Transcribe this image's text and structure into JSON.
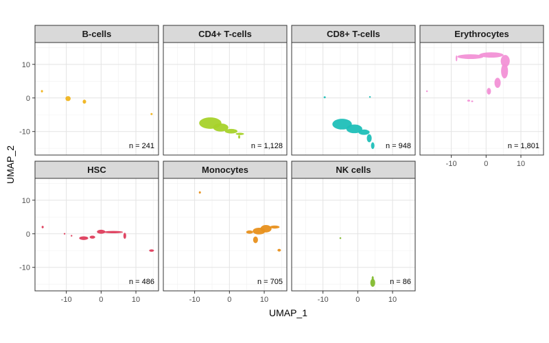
{
  "chart_data": {
    "type": "scatter",
    "title": "",
    "xlabel": "UMAP_1",
    "ylabel": "UMAP_2",
    "xlim": [
      -19,
      16.5
    ],
    "ylim": [
      -17,
      16.5
    ],
    "x_ticks": [
      -10,
      0,
      10
    ],
    "y_ticks": [
      10,
      0,
      -10
    ],
    "grid": true,
    "legend": "none",
    "panels": [
      {
        "name": "B-cells",
        "n_label": "n = 241",
        "color": "#f0b41d",
        "clusters": [
          {
            "x": -17,
            "y": 2,
            "rx": 0.3,
            "ry": 0.35
          },
          {
            "x": -9.5,
            "y": -0.2,
            "rx": 0.75,
            "ry": 0.75
          },
          {
            "x": -4.8,
            "y": -1.1,
            "rx": 0.5,
            "ry": 0.6
          },
          {
            "x": 14.5,
            "y": -4.8,
            "rx": 0.3,
            "ry": 0.3
          }
        ]
      },
      {
        "name": "CD4+ T-cells",
        "n_label": "n = 1,128",
        "color": "#a6d22a",
        "clusters": [
          {
            "x": -5.5,
            "y": -7.5,
            "rx": 3.2,
            "ry": 1.7
          },
          {
            "x": -2.5,
            "y": -8.8,
            "rx": 2.2,
            "ry": 1.2
          },
          {
            "x": 0.5,
            "y": -9.9,
            "rx": 1.8,
            "ry": 0.7
          },
          {
            "x": 3.0,
            "y": -10.7,
            "rx": 1.2,
            "ry": 0.35
          },
          {
            "x": 2.8,
            "y": -11.6,
            "rx": 0.3,
            "ry": 0.5
          }
        ]
      },
      {
        "name": "CD8+ T-cells",
        "n_label": "n = 948",
        "color": "#1fbfb8",
        "clusters": [
          {
            "x": -9.5,
            "y": 0.2,
            "rx": 0.3,
            "ry": 0.3
          },
          {
            "x": 3.5,
            "y": 0.3,
            "rx": 0.25,
            "ry": 0.25
          },
          {
            "x": -4.5,
            "y": -7.8,
            "rx": 2.8,
            "ry": 1.6
          },
          {
            "x": -1.0,
            "y": -9.2,
            "rx": 2.3,
            "ry": 1.3
          },
          {
            "x": 1.8,
            "y": -10.2,
            "rx": 1.6,
            "ry": 0.8
          },
          {
            "x": 3.3,
            "y": -12.0,
            "rx": 0.7,
            "ry": 1.2
          },
          {
            "x": 4.3,
            "y": -14.2,
            "rx": 0.5,
            "ry": 1.0
          }
        ]
      },
      {
        "name": "Erythrocytes",
        "n_label": "n = 1,801",
        "color": "#f291d6",
        "clusters": [
          {
            "x": -17,
            "y": 2,
            "rx": 0.25,
            "ry": 0.25
          },
          {
            "x": -5,
            "y": -0.8,
            "rx": 0.4,
            "ry": 0.3
          },
          {
            "x": -4,
            "y": -1.0,
            "rx": 0.3,
            "ry": 0.25
          },
          {
            "x": -8.5,
            "y": 11.8,
            "rx": 0.2,
            "ry": 0.9
          },
          {
            "x": -4.5,
            "y": 12.3,
            "rx": 3.8,
            "ry": 0.7
          },
          {
            "x": 1.5,
            "y": 12.8,
            "rx": 3.5,
            "ry": 0.8
          },
          {
            "x": 5.5,
            "y": 11.0,
            "rx": 1.3,
            "ry": 1.8
          },
          {
            "x": 5.3,
            "y": 8.0,
            "rx": 1.0,
            "ry": 2.2
          },
          {
            "x": 3.3,
            "y": 4.5,
            "rx": 0.9,
            "ry": 1.5
          },
          {
            "x": 0.8,
            "y": 2.0,
            "rx": 0.6,
            "ry": 1.0
          }
        ]
      },
      {
        "name": "HSC",
        "n_label": "n = 486",
        "color": "#de3d5c",
        "clusters": [
          {
            "x": -16.8,
            "y": 2,
            "rx": 0.3,
            "ry": 0.35
          },
          {
            "x": -10.5,
            "y": 0,
            "rx": 0.2,
            "ry": 0.2
          },
          {
            "x": -8.5,
            "y": -0.6,
            "rx": 0.2,
            "ry": 0.2
          },
          {
            "x": -5,
            "y": -1.3,
            "rx": 1.3,
            "ry": 0.55
          },
          {
            "x": -2.5,
            "y": -1.0,
            "rx": 0.8,
            "ry": 0.45
          },
          {
            "x": 0,
            "y": 0.6,
            "rx": 1.2,
            "ry": 0.6
          },
          {
            "x": 3.5,
            "y": 0.5,
            "rx": 2.8,
            "ry": 0.35
          },
          {
            "x": 6.8,
            "y": -0.6,
            "rx": 0.4,
            "ry": 0.9
          },
          {
            "x": 14.5,
            "y": -5.0,
            "rx": 0.7,
            "ry": 0.35
          }
        ]
      },
      {
        "name": "Monocytes",
        "n_label": "n = 705",
        "color": "#e8901c",
        "clusters": [
          {
            "x": -8.5,
            "y": 12.3,
            "rx": 0.3,
            "ry": 0.35
          },
          {
            "x": 5.8,
            "y": 0.5,
            "rx": 1.0,
            "ry": 0.5
          },
          {
            "x": 8.5,
            "y": 0.8,
            "rx": 1.8,
            "ry": 1.0
          },
          {
            "x": 10.5,
            "y": 1.5,
            "rx": 1.6,
            "ry": 1.1
          },
          {
            "x": 13.0,
            "y": 2.0,
            "rx": 1.4,
            "ry": 0.45
          },
          {
            "x": 7.5,
            "y": -1.8,
            "rx": 0.7,
            "ry": 1.0
          },
          {
            "x": 14.3,
            "y": -4.9,
            "rx": 0.5,
            "ry": 0.4
          }
        ]
      },
      {
        "name": "NK cells",
        "n_label": "n = 86",
        "color": "#82ba2e",
        "clusters": [
          {
            "x": -5,
            "y": -1.3,
            "rx": 0.25,
            "ry": 0.25
          },
          {
            "x": 4.3,
            "y": -13.2,
            "rx": 0.3,
            "ry": 0.6
          },
          {
            "x": 4.3,
            "y": -14.6,
            "rx": 0.7,
            "ry": 1.2
          }
        ]
      }
    ]
  }
}
